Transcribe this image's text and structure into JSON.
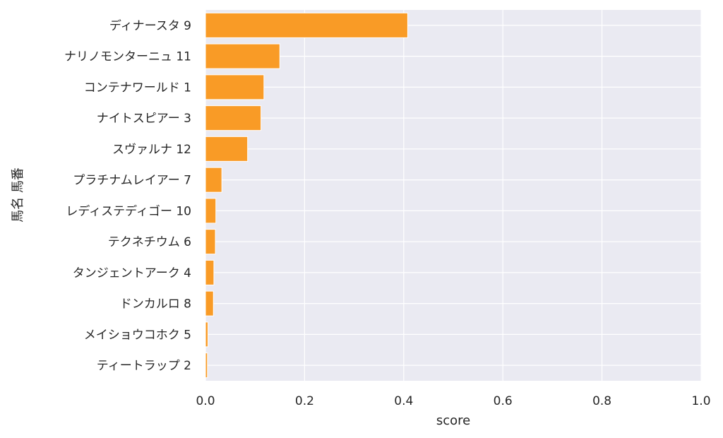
{
  "chart_data": {
    "type": "bar",
    "orientation": "horizontal",
    "categories": [
      "ディナースタ 9",
      "ナリノモンターニュ 11",
      "コンテナワールド 1",
      "ナイトスピアー 3",
      "スヴァルナ 12",
      "プラチナムレイアー 7",
      "レディステディゴー 10",
      "テクネチウム 6",
      "タンジェントアーク 4",
      "ドンカルロ 8",
      "メイショウコホク 5",
      "ティートラップ 2"
    ],
    "values": [
      0.408,
      0.15,
      0.118,
      0.112,
      0.085,
      0.033,
      0.021,
      0.02,
      0.017,
      0.016,
      0.005,
      0.004
    ],
    "xlabel": "score",
    "ylabel": "馬名 馬番",
    "xlim": [
      0,
      1.0
    ],
    "xticks": [
      "0.0",
      "0.2",
      "0.4",
      "0.6",
      "0.8",
      "1.0"
    ],
    "grid": true,
    "colors": {
      "bar": "#f99b26",
      "bar_edge": "#ffffff",
      "plot_background": "#eaeaf2",
      "grid": "#ffffff"
    }
  }
}
